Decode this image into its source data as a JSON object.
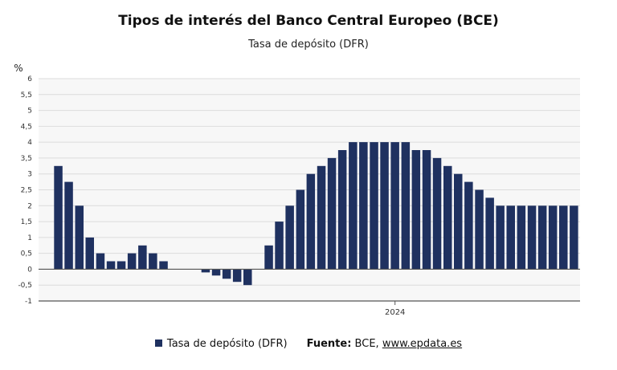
{
  "chart_data": {
    "type": "bar",
    "title": "Tipos de interés del Banco Central Europeo (BCE)",
    "subtitle": "Tasa de depósito (DFR)",
    "ylabel": "%",
    "xlabel": "",
    "ylim": [
      -1,
      6
    ],
    "yticks": [
      "6",
      "5,5",
      "5",
      "4,5",
      "4",
      "3,5",
      "3",
      "2,5",
      "2",
      "1,5",
      "1",
      "0,5",
      "0",
      "-0,5",
      "-1"
    ],
    "x_tick_labels": [
      {
        "label": "2024",
        "index": 32
      }
    ],
    "grid": true,
    "legend_position": "bottom",
    "bar_color": "#1f3160",
    "series": [
      {
        "name": "Tasa de depósito (DFR)",
        "values": [
          3.25,
          2.75,
          2.0,
          1.0,
          0.5,
          0.25,
          0.25,
          0.5,
          0.75,
          0.5,
          0.25,
          null,
          null,
          null,
          -0.1,
          -0.2,
          -0.3,
          -0.4,
          -0.5,
          null,
          0.75,
          1.5,
          2.0,
          2.5,
          3.0,
          3.25,
          3.5,
          3.75,
          4.0,
          4.0,
          4.0,
          4.0,
          4.0,
          4.0,
          3.75,
          3.75,
          3.5,
          3.25,
          3.0,
          2.75,
          2.5,
          2.25,
          2.0,
          2.0,
          2.0,
          2.0,
          2.0,
          2.0,
          2.0,
          2.0
        ]
      }
    ]
  },
  "legend": {
    "series_label": "Tasa de depósito (DFR)",
    "source_label": "Fuente:",
    "source_text": "BCE,",
    "source_link": "www.epdata.es"
  }
}
